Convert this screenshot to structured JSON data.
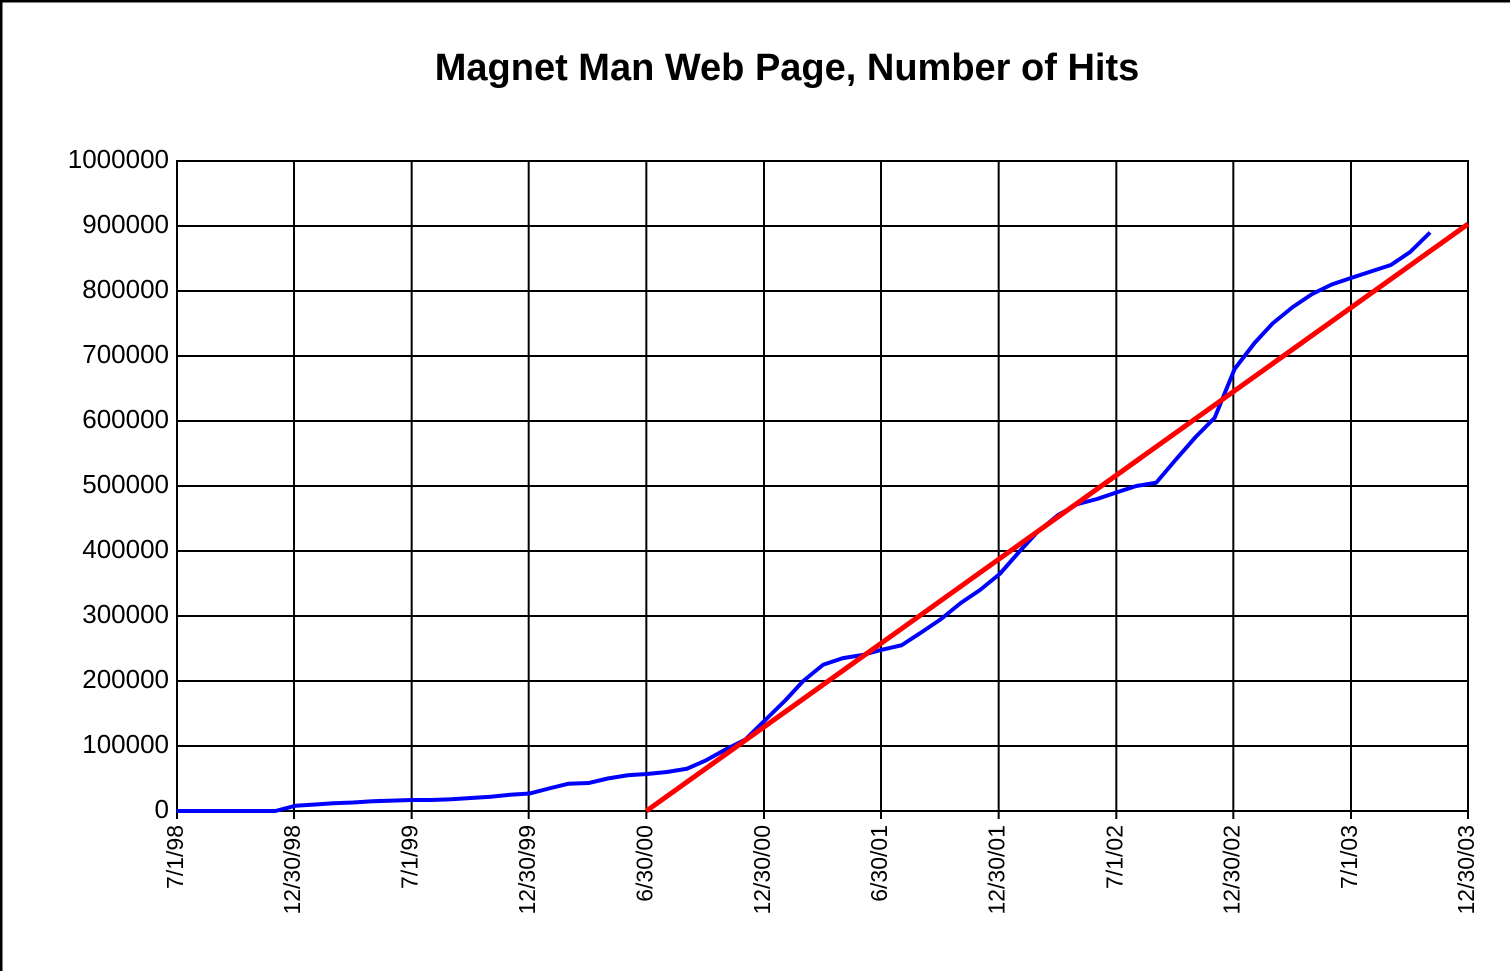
{
  "chart_data": {
    "type": "line",
    "title": "Magnet Man Web Page, Number of Hits",
    "xlim": [
      "1998-07-01",
      "2003-12-30"
    ],
    "xticks": [
      {
        "value": "1998-07-01",
        "label": "7/1/98"
      },
      {
        "value": "1998-12-30",
        "label": "12/30/98"
      },
      {
        "value": "1999-07-01",
        "label": "7/1/99"
      },
      {
        "value": "1999-12-30",
        "label": "12/30/99"
      },
      {
        "value": "2000-06-30",
        "label": "6/30/00"
      },
      {
        "value": "2000-12-30",
        "label": "12/30/00"
      },
      {
        "value": "2001-06-30",
        "label": "6/30/01"
      },
      {
        "value": "2001-12-30",
        "label": "12/30/01"
      },
      {
        "value": "2002-07-01",
        "label": "7/1/02"
      },
      {
        "value": "2002-12-30",
        "label": "12/30/02"
      },
      {
        "value": "2003-07-01",
        "label": "7/1/03"
      },
      {
        "value": "2003-12-30",
        "label": "12/30/03"
      }
    ],
    "ylim": [
      0,
      1000000
    ],
    "yticks": [
      0,
      100000,
      200000,
      300000,
      400000,
      500000,
      600000,
      700000,
      800000,
      900000,
      1000000
    ],
    "grid": true,
    "series": [
      {
        "color": "#0000ff",
        "x": [
          "1998-07-01",
          "1998-08-01",
          "1998-09-01",
          "1998-10-01",
          "1998-11-01",
          "1998-12-01",
          "1999-01-01",
          "1999-02-01",
          "1999-03-01",
          "1999-04-01",
          "1999-05-01",
          "1999-06-01",
          "1999-07-01",
          "1999-08-01",
          "1999-09-01",
          "1999-10-01",
          "1999-11-01",
          "1999-12-01",
          "2000-01-01",
          "2000-02-01",
          "2000-03-01",
          "2000-04-01",
          "2000-05-01",
          "2000-06-01",
          "2000-07-01",
          "2000-08-01",
          "2000-09-01",
          "2000-10-01",
          "2000-11-01",
          "2000-12-01",
          "2001-01-01",
          "2001-02-01",
          "2001-03-01",
          "2001-04-01",
          "2001-05-01",
          "2001-06-01",
          "2001-07-01",
          "2001-08-01",
          "2001-09-01",
          "2001-10-01",
          "2001-11-01",
          "2001-12-01",
          "2002-01-01",
          "2002-02-01",
          "2002-03-01",
          "2002-04-01",
          "2002-05-01",
          "2002-06-01",
          "2002-07-01",
          "2002-08-01",
          "2002-09-01",
          "2002-10-01",
          "2002-11-01",
          "2002-12-01",
          "2003-01-01",
          "2003-02-01",
          "2003-03-01",
          "2003-04-01",
          "2003-05-01",
          "2003-06-01",
          "2003-07-01",
          "2003-08-01",
          "2003-09-01",
          "2003-10-01",
          "2003-11-01"
        ],
        "values": [
          0,
          0,
          0,
          0,
          0,
          0,
          8000,
          10000,
          12000,
          13000,
          15000,
          16000,
          17000,
          17000,
          18000,
          20000,
          22000,
          25000,
          27000,
          35000,
          42000,
          43000,
          50000,
          55000,
          57000,
          60000,
          65000,
          78000,
          95000,
          110000,
          140000,
          170000,
          200000,
          225000,
          235000,
          240000,
          248000,
          255000,
          275000,
          295000,
          320000,
          340000,
          365000,
          400000,
          430000,
          455000,
          472000,
          480000,
          490000,
          500000,
          505000,
          540000,
          575000,
          605000,
          680000,
          720000,
          750000,
          775000,
          795000,
          810000,
          820000,
          830000,
          840000,
          860000,
          890000
        ]
      },
      {
        "color": "#ff0000",
        "x": [
          "2000-06-30",
          "2003-12-30"
        ],
        "values": [
          0,
          903000
        ]
      }
    ]
  }
}
